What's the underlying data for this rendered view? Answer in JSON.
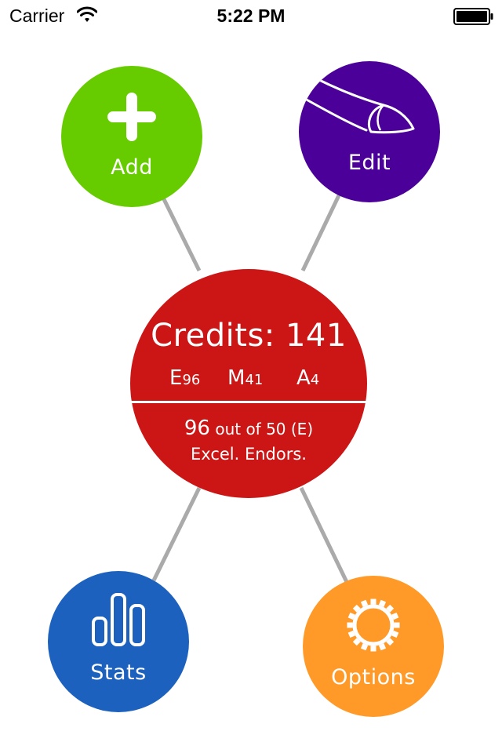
{
  "status_bar": {
    "carrier": "Carrier",
    "time": "5:22 PM"
  },
  "colors": {
    "add": "#66cc00",
    "edit": "#4b0099",
    "credits": "#cc1515",
    "stats": "#1c61bd",
    "options": "#ff9a28",
    "connector": "#aaaaaa"
  },
  "menu": {
    "add": {
      "label": "Add",
      "icon": "plus-icon"
    },
    "edit": {
      "label": "Edit",
      "icon": "finger-pointer-icon"
    },
    "stats": {
      "label": "Stats",
      "icon": "bar-chart-icon"
    },
    "options": {
      "label": "Options",
      "icon": "gear-icon"
    }
  },
  "credits": {
    "title": "Credits: 141",
    "breakdown": [
      {
        "letter": "E",
        "value": "96"
      },
      {
        "letter": "M",
        "value": "41"
      },
      {
        "letter": "A",
        "value": "4"
      }
    ],
    "requirement": {
      "current": "96",
      "text": "out of 50 (E)"
    },
    "category": "Excel. Endors."
  }
}
